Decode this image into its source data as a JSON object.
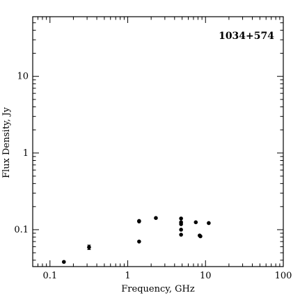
{
  "chart_data": {
    "type": "scatter",
    "title": "1034+574",
    "xlabel": "Frequency, GHz",
    "ylabel": "Flux Density, Jy",
    "xscale": "log",
    "yscale": "log",
    "xlim": [
      0.06,
      100
    ],
    "ylim": [
      0.033,
      60
    ],
    "grid": false,
    "legend": "none",
    "x_tick_labels": [
      "0.1",
      "1",
      "10",
      "100"
    ],
    "x_tick_values": [
      0.1,
      1,
      10,
      100
    ],
    "y_tick_labels": [
      "0.1",
      "1",
      "10"
    ],
    "y_tick_values": [
      0.1,
      1,
      10
    ],
    "series": [
      {
        "points": [
          {
            "x": 0.151,
            "y": 0.038
          },
          {
            "x": 0.318,
            "y": 0.059,
            "err": 0.004
          },
          {
            "x": 1.4,
            "y": 0.128
          },
          {
            "x": 1.4,
            "y": 0.13
          },
          {
            "x": 1.4,
            "y": 0.07
          },
          {
            "x": 2.3,
            "y": 0.142
          },
          {
            "x": 4.85,
            "y": 0.14
          },
          {
            "x": 4.85,
            "y": 0.125
          },
          {
            "x": 4.85,
            "y": 0.118
          },
          {
            "x": 4.85,
            "y": 0.1
          },
          {
            "x": 4.85,
            "y": 0.086
          },
          {
            "x": 7.5,
            "y": 0.125
          },
          {
            "x": 8.4,
            "y": 0.084
          },
          {
            "x": 8.6,
            "y": 0.082
          },
          {
            "x": 11.0,
            "y": 0.122
          }
        ]
      }
    ]
  }
}
